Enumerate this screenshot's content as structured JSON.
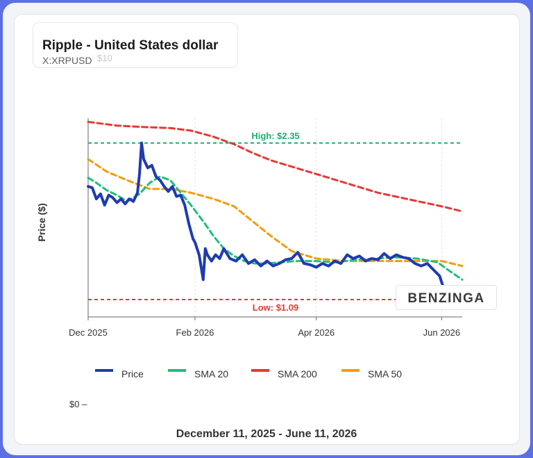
{
  "header": {
    "title": "Ripple - United States dollar",
    "ticker": "X:XRPUSD",
    "ghost_tick": "$10"
  },
  "footer": {
    "date_range": "December 11, 2025 - June 11, 2026"
  },
  "watermark": "BENZINGA",
  "colors": {
    "price": "#1f3bb0",
    "sma20": "#1fbf7a",
    "sma200": "#e53935",
    "sma50": "#f59c0b",
    "high": "#1aaf6c",
    "low": "#e53935"
  },
  "chart_data": {
    "type": "line",
    "ylabel": "Price ($)",
    "ytick_zero": "$0",
    "y_range": [
      0.95,
      2.55
    ],
    "x_range": [
      "2025-12-11",
      "2026-06-11"
    ],
    "x_ticks": [
      {
        "date": "2025-12-11",
        "label": "Dec 2025"
      },
      {
        "date": "2026-02-01",
        "label": "Feb 2026"
      },
      {
        "date": "2026-04-01",
        "label": "Apr 2026"
      },
      {
        "date": "2026-06-01",
        "label": "Jun 2026"
      }
    ],
    "reference_lines": [
      {
        "name": "high",
        "value": 2.35,
        "label": "High: $2.35"
      },
      {
        "name": "low",
        "value": 1.09,
        "label": "Low: $1.09"
      }
    ],
    "legend": [
      {
        "key": "price",
        "label": "Price"
      },
      {
        "key": "sma20",
        "label": "SMA 20"
      },
      {
        "key": "sma200",
        "label": "SMA 200"
      },
      {
        "key": "sma50",
        "label": "SMA 50"
      }
    ],
    "series": [
      {
        "key": "price",
        "name": "Price",
        "x": [
          "2025-12-11",
          "2025-12-13",
          "2025-12-15",
          "2025-12-17",
          "2025-12-19",
          "2025-12-21",
          "2025-12-23",
          "2025-12-25",
          "2025-12-27",
          "2025-12-29",
          "2025-12-31",
          "2026-01-02",
          "2026-01-04",
          "2026-01-05",
          "2026-01-06",
          "2026-01-07",
          "2026-01-09",
          "2026-01-11",
          "2026-01-13",
          "2026-01-15",
          "2026-01-17",
          "2026-01-19",
          "2026-01-21",
          "2026-01-23",
          "2026-01-25",
          "2026-01-27",
          "2026-01-29",
          "2026-01-31",
          "2026-02-01",
          "2026-02-03",
          "2026-02-05",
          "2026-02-06",
          "2026-02-07",
          "2026-02-09",
          "2026-02-11",
          "2026-02-13",
          "2026-02-15",
          "2026-02-18",
          "2026-02-21",
          "2026-02-24",
          "2026-02-27",
          "2026-03-02",
          "2026-03-05",
          "2026-03-08",
          "2026-03-11",
          "2026-03-14",
          "2026-03-17",
          "2026-03-20",
          "2026-03-23",
          "2026-03-26",
          "2026-03-29",
          "2026-04-01",
          "2026-04-04",
          "2026-04-07",
          "2026-04-10",
          "2026-04-13",
          "2026-04-16",
          "2026-04-19",
          "2026-04-22",
          "2026-04-25",
          "2026-04-28",
          "2026-05-01",
          "2026-05-04",
          "2026-05-07",
          "2026-05-10",
          "2026-05-13",
          "2026-05-16",
          "2026-05-19",
          "2026-05-22",
          "2026-05-25",
          "2026-05-28",
          "2026-05-31",
          "2026-06-02",
          "2026-06-04",
          "2026-06-06",
          "2026-06-08",
          "2026-06-11"
        ],
        "values": [
          2.0,
          1.99,
          1.9,
          1.94,
          1.85,
          1.93,
          1.91,
          1.87,
          1.9,
          1.86,
          1.9,
          1.88,
          1.95,
          2.1,
          2.35,
          2.22,
          2.15,
          2.17,
          2.08,
          2.05,
          2.0,
          1.96,
          2.0,
          1.92,
          1.93,
          1.85,
          1.7,
          1.58,
          1.55,
          1.45,
          1.25,
          1.5,
          1.45,
          1.4,
          1.45,
          1.42,
          1.5,
          1.42,
          1.4,
          1.45,
          1.38,
          1.41,
          1.36,
          1.4,
          1.36,
          1.38,
          1.41,
          1.42,
          1.47,
          1.38,
          1.37,
          1.35,
          1.38,
          1.36,
          1.4,
          1.38,
          1.45,
          1.42,
          1.44,
          1.4,
          1.42,
          1.41,
          1.46,
          1.42,
          1.45,
          1.43,
          1.42,
          1.38,
          1.36,
          1.38,
          1.33,
          1.28,
          1.18,
          1.15,
          1.1,
          1.13,
          1.1
        ]
      },
      {
        "key": "sma20",
        "name": "SMA 20",
        "x": [
          "2025-12-11",
          "2025-12-15",
          "2025-12-20",
          "2025-12-25",
          "2025-12-30",
          "2026-01-05",
          "2026-01-10",
          "2026-01-15",
          "2026-01-20",
          "2026-01-25",
          "2026-01-30",
          "2026-02-05",
          "2026-02-10",
          "2026-02-15",
          "2026-02-20",
          "2026-02-25",
          "2026-03-02",
          "2026-03-08",
          "2026-03-15",
          "2026-03-22",
          "2026-04-01",
          "2026-04-10",
          "2026-04-20",
          "2026-04-30",
          "2026-05-10",
          "2026-05-20",
          "2026-05-30",
          "2026-06-04",
          "2026-06-11"
        ],
        "values": [
          2.07,
          2.03,
          1.97,
          1.93,
          1.88,
          1.94,
          2.03,
          2.08,
          2.05,
          1.95,
          1.85,
          1.72,
          1.6,
          1.5,
          1.44,
          1.4,
          1.38,
          1.38,
          1.39,
          1.4,
          1.4,
          1.39,
          1.41,
          1.42,
          1.43,
          1.42,
          1.39,
          1.33,
          1.25
        ]
      },
      {
        "key": "sma200",
        "name": "SMA 200",
        "x": [
          "2025-12-11",
          "2025-12-25",
          "2026-01-05",
          "2026-01-20",
          "2026-01-30",
          "2026-02-10",
          "2026-02-20",
          "2026-03-01",
          "2026-03-10",
          "2026-03-20",
          "2026-04-01",
          "2026-04-15",
          "2026-05-01",
          "2026-05-15",
          "2026-06-01",
          "2026-06-11"
        ],
        "values": [
          2.52,
          2.49,
          2.48,
          2.47,
          2.45,
          2.4,
          2.34,
          2.27,
          2.21,
          2.16,
          2.1,
          2.03,
          1.95,
          1.9,
          1.84,
          1.8
        ]
      },
      {
        "key": "sma50",
        "name": "SMA 50",
        "x": [
          "2025-12-11",
          "2025-12-20",
          "2025-12-30",
          "2026-01-10",
          "2026-01-20",
          "2026-01-30",
          "2026-02-10",
          "2026-02-20",
          "2026-03-01",
          "2026-03-10",
          "2026-03-20",
          "2026-04-01",
          "2026-04-15",
          "2026-05-01",
          "2026-05-15",
          "2026-06-01",
          "2026-06-11"
        ],
        "values": [
          2.22,
          2.12,
          2.05,
          1.98,
          1.98,
          1.95,
          1.9,
          1.84,
          1.72,
          1.6,
          1.48,
          1.42,
          1.4,
          1.4,
          1.4,
          1.4,
          1.36
        ]
      }
    ]
  }
}
